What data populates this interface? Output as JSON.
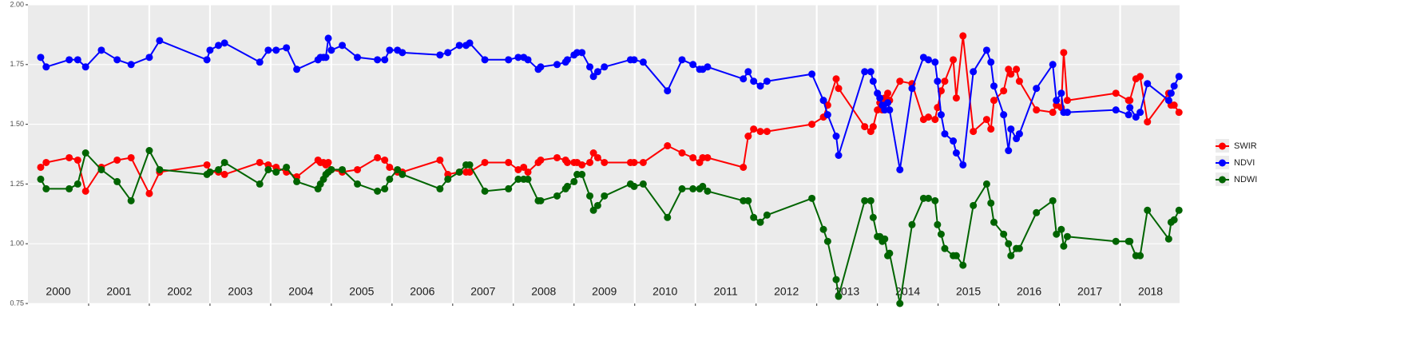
{
  "chart_data": {
    "type": "line",
    "x": [
      2000.21,
      2000.3,
      2000.68,
      2000.82,
      2000.95,
      2001.21,
      2001.47,
      2001.7,
      2002.0,
      2002.17,
      2002.95,
      2003.0,
      2003.14,
      2003.24,
      2003.82,
      2003.96,
      2004.09,
      2004.26,
      2004.43,
      2004.78,
      2004.82,
      2004.87,
      2004.91,
      2004.95,
      2005.0,
      2005.18,
      2005.43,
      2005.76,
      2005.88,
      2005.96,
      2006.09,
      2006.17,
      2006.79,
      2006.92,
      2007.11,
      2007.22,
      2007.28,
      2007.53,
      2007.92,
      2008.08,
      2008.17,
      2008.24,
      2008.41,
      2008.45,
      2008.72,
      2008.86,
      2008.89,
      2009.0,
      2009.05,
      2009.13,
      2009.26,
      2009.32,
      2009.39,
      2009.5,
      2009.93,
      2009.99,
      2010.14,
      2010.54,
      2010.78,
      2010.96,
      2011.07,
      2011.12,
      2011.2,
      2011.79,
      2011.87,
      2011.96,
      2012.07,
      2012.18,
      2012.92,
      2013.11,
      2013.18,
      2013.32,
      2013.36,
      2013.79,
      2013.89,
      2013.93,
      2014.0,
      2014.04,
      2014.08,
      2014.12,
      2014.17,
      2014.2,
      2014.37,
      2014.57,
      2014.76,
      2014.84,
      2014.95,
      2014.99,
      2015.05,
      2015.11,
      2015.25,
      2015.3,
      2015.41,
      2015.58,
      2015.8,
      2015.87,
      2015.92,
      2016.08,
      2016.16,
      2016.2,
      2016.29,
      2016.34,
      2016.62,
      2016.89,
      2016.95,
      2017.03,
      2017.07,
      2017.13,
      2017.93,
      2018.14,
      2018.16,
      2018.26,
      2018.33,
      2018.45,
      2018.8,
      2018.84,
      2018.89,
      2018.97
    ],
    "series": [
      {
        "name": "SWIR",
        "color": "#ff0000",
        "values": [
          1.32,
          1.34,
          1.36,
          1.35,
          1.22,
          1.32,
          1.35,
          1.36,
          1.21,
          1.3,
          1.33,
          1.3,
          1.3,
          1.29,
          1.34,
          1.33,
          1.32,
          1.3,
          1.28,
          1.35,
          1.34,
          1.34,
          1.33,
          1.34,
          1.31,
          1.3,
          1.31,
          1.36,
          1.35,
          1.32,
          1.3,
          1.3,
          1.35,
          1.29,
          1.3,
          1.3,
          1.3,
          1.34,
          1.34,
          1.31,
          1.32,
          1.3,
          1.34,
          1.35,
          1.36,
          1.35,
          1.34,
          1.34,
          1.34,
          1.33,
          1.34,
          1.38,
          1.36,
          1.34,
          1.34,
          1.34,
          1.34,
          1.41,
          1.38,
          1.36,
          1.34,
          1.36,
          1.36,
          1.32,
          1.45,
          1.48,
          1.47,
          1.47,
          1.5,
          1.53,
          1.58,
          1.69,
          1.65,
          1.49,
          1.47,
          1.49,
          1.56,
          1.59,
          1.56,
          1.61,
          1.63,
          1.6,
          1.68,
          1.67,
          1.52,
          1.53,
          1.52,
          1.57,
          1.64,
          1.68,
          1.77,
          1.61,
          1.87,
          1.47,
          1.52,
          1.48,
          1.6,
          1.64,
          1.73,
          1.71,
          1.73,
          1.68,
          1.56,
          1.55,
          1.58,
          1.57,
          1.8,
          1.6,
          1.63,
          1.6,
          1.6,
          1.69,
          1.7,
          1.51,
          1.63,
          1.58,
          1.58,
          1.55
        ]
      },
      {
        "name": "NDVI",
        "color": "#0000ff",
        "values": [
          1.78,
          1.74,
          1.77,
          1.77,
          1.74,
          1.81,
          1.77,
          1.75,
          1.78,
          1.85,
          1.77,
          1.81,
          1.83,
          1.84,
          1.76,
          1.81,
          1.81,
          1.82,
          1.73,
          1.77,
          1.78,
          1.78,
          1.78,
          1.86,
          1.81,
          1.83,
          1.78,
          1.77,
          1.77,
          1.81,
          1.81,
          1.8,
          1.79,
          1.8,
          1.83,
          1.83,
          1.84,
          1.77,
          1.77,
          1.78,
          1.78,
          1.77,
          1.73,
          1.74,
          1.75,
          1.76,
          1.77,
          1.79,
          1.8,
          1.8,
          1.74,
          1.7,
          1.72,
          1.74,
          1.77,
          1.77,
          1.76,
          1.64,
          1.77,
          1.75,
          1.73,
          1.73,
          1.74,
          1.69,
          1.72,
          1.68,
          1.66,
          1.68,
          1.71,
          1.6,
          1.54,
          1.45,
          1.37,
          1.72,
          1.72,
          1.68,
          1.63,
          1.61,
          1.58,
          1.56,
          1.59,
          1.56,
          1.31,
          1.65,
          1.78,
          1.77,
          1.76,
          1.68,
          1.54,
          1.46,
          1.43,
          1.38,
          1.33,
          1.72,
          1.81,
          1.76,
          1.66,
          1.54,
          1.39,
          1.48,
          1.44,
          1.46,
          1.65,
          1.75,
          1.6,
          1.63,
          1.55,
          1.55,
          1.56,
          1.54,
          1.57,
          1.53,
          1.55,
          1.67,
          1.6,
          1.63,
          1.66,
          1.7
        ]
      },
      {
        "name": "NDWI",
        "color": "#006400",
        "values": [
          1.27,
          1.23,
          1.23,
          1.25,
          1.38,
          1.31,
          1.26,
          1.18,
          1.39,
          1.31,
          1.29,
          1.3,
          1.31,
          1.34,
          1.25,
          1.31,
          1.3,
          1.32,
          1.26,
          1.23,
          1.25,
          1.27,
          1.29,
          1.3,
          1.31,
          1.31,
          1.25,
          1.22,
          1.23,
          1.27,
          1.31,
          1.29,
          1.23,
          1.27,
          1.3,
          1.33,
          1.33,
          1.22,
          1.23,
          1.27,
          1.27,
          1.27,
          1.18,
          1.18,
          1.2,
          1.23,
          1.24,
          1.26,
          1.29,
          1.29,
          1.2,
          1.14,
          1.16,
          1.2,
          1.25,
          1.24,
          1.25,
          1.11,
          1.23,
          1.23,
          1.23,
          1.24,
          1.22,
          1.18,
          1.18,
          1.11,
          1.09,
          1.12,
          1.19,
          1.06,
          1.01,
          0.85,
          0.78,
          1.18,
          1.18,
          1.11,
          1.03,
          1.03,
          1.01,
          1.02,
          0.95,
          0.96,
          0.75,
          1.08,
          1.19,
          1.19,
          1.18,
          1.08,
          1.04,
          0.98,
          0.95,
          0.95,
          0.91,
          1.16,
          1.25,
          1.17,
          1.09,
          1.04,
          1.0,
          0.95,
          0.98,
          0.98,
          1.13,
          1.18,
          1.04,
          1.06,
          0.99,
          1.03,
          1.01,
          1.01,
          1.01,
          0.95,
          0.95,
          1.14,
          1.02,
          1.09,
          1.1,
          1.14
        ]
      }
    ],
    "xlim": [
      2000,
      2018.98
    ],
    "xticks": [
      {
        "value": 2000.5,
        "label": "2000"
      },
      {
        "value": 2001.5,
        "label": "2001"
      },
      {
        "value": 2002.5,
        "label": "2002"
      },
      {
        "value": 2003.5,
        "label": "2003"
      },
      {
        "value": 2004.5,
        "label": "2004"
      },
      {
        "value": 2005.5,
        "label": "2005"
      },
      {
        "value": 2006.5,
        "label": "2006"
      },
      {
        "value": 2007.5,
        "label": "2007"
      },
      {
        "value": 2008.5,
        "label": "2008"
      },
      {
        "value": 2009.5,
        "label": "2009"
      },
      {
        "value": 2010.5,
        "label": "2010"
      },
      {
        "value": 2011.5,
        "label": "2011"
      },
      {
        "value": 2012.5,
        "label": "2012"
      },
      {
        "value": 2013.5,
        "label": "2013"
      },
      {
        "value": 2014.5,
        "label": "2014"
      },
      {
        "value": 2015.5,
        "label": "2015"
      },
      {
        "value": 2016.5,
        "label": "2016"
      },
      {
        "value": 2017.5,
        "label": "2017"
      },
      {
        "value": 2018.5,
        "label": "2018"
      }
    ],
    "xgrid": [
      2001,
      2002,
      2003,
      2004,
      2005,
      2006,
      2007,
      2008,
      2009,
      2010,
      2011,
      2012,
      2013,
      2014,
      2015,
      2016,
      2017,
      2018
    ],
    "ylim": [
      0.75,
      2.0
    ],
    "yticks": [
      {
        "value": 0.75,
        "label": "0.75"
      },
      {
        "value": 1.0,
        "label": "1.00"
      },
      {
        "value": 1.25,
        "label": "1.25"
      },
      {
        "value": 1.5,
        "label": "1.50"
      },
      {
        "value": 1.75,
        "label": "1.75"
      },
      {
        "value": 2.0,
        "label": "2.00"
      }
    ],
    "grid": true,
    "legend": "right"
  }
}
